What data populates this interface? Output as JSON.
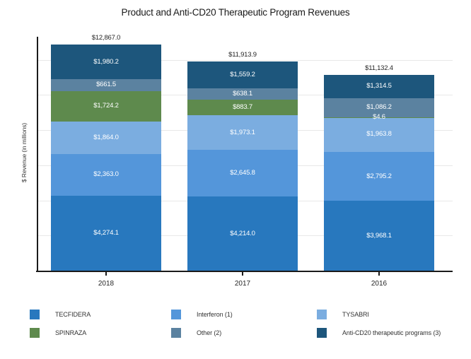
{
  "chart_data": {
    "type": "bar",
    "stacked": true,
    "title": "Product and Anti-CD20 Therapeutic Program Revenues",
    "ylabel": "$ Revenue (in millions)",
    "xlabel": "",
    "categories": [
      "2018",
      "2017",
      "2016"
    ],
    "series": [
      {
        "name": "TECFIDERA",
        "color": "#2878BE",
        "values": [
          4274.1,
          4214.0,
          3968.1
        ]
      },
      {
        "name": "Interferon (1)",
        "color": "#5496DA",
        "values": [
          2363.0,
          2645.8,
          2795.2
        ]
      },
      {
        "name": "TYSABRI",
        "color": "#7BADE0",
        "values": [
          1864.0,
          1973.1,
          1963.8
        ]
      },
      {
        "name": "SPINRAZA",
        "color": "#5E8A4D",
        "values": [
          1724.2,
          883.7,
          4.6
        ]
      },
      {
        "name": "Other (2)",
        "color": "#5B82A0",
        "values": [
          661.5,
          638.1,
          1086.2
        ]
      },
      {
        "name": "Anti-CD20 therapeutic programs (3)",
        "color": "#1D567C",
        "values": [
          1980.2,
          1559.2,
          1314.5
        ]
      }
    ],
    "total_labels": [
      "$12,867.0",
      "$11,913.9",
      "$11,132.4"
    ],
    "segment_labels": [
      [
        "$4,274.1",
        "$4,214.0",
        "$3,968.1"
      ],
      [
        "$2,363.0",
        "$2,645.8",
        "$2,795.2"
      ],
      [
        "$1,864.0",
        "$1,973.1",
        "$1,963.8"
      ],
      [
        "$1,724.2",
        "$883.7",
        "$4.6"
      ],
      [
        "$661.5",
        "$638.1",
        "$1,086.2"
      ],
      [
        "$1,980.2",
        "$1,559.2",
        "$1,314.5"
      ]
    ],
    "value_prefix": "$",
    "ylim": [
      0,
      12867
    ],
    "gridline_interval": 2000,
    "grid": true,
    "legend_position": "bottom",
    "legend_rows": 2,
    "legend_columns": 3
  }
}
